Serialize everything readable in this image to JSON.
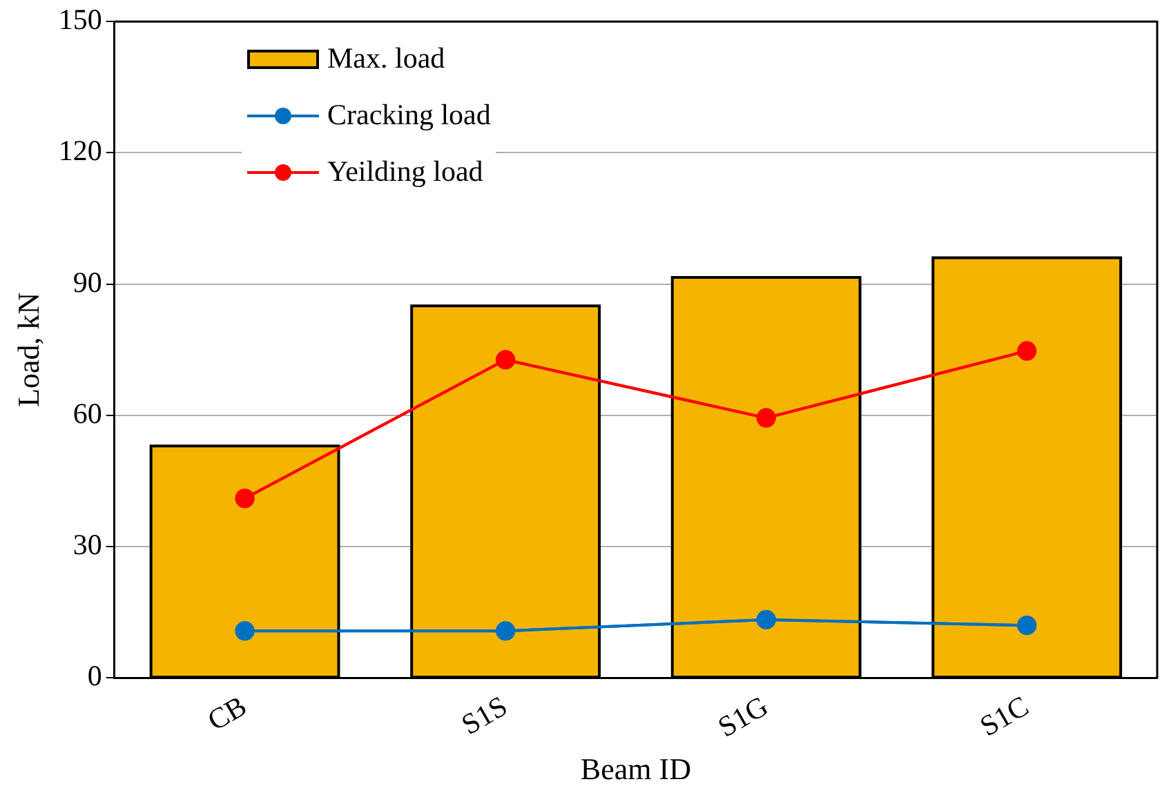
{
  "chart_data": {
    "type": "bar",
    "xlabel": "Beam ID",
    "ylabel": "Load, kN",
    "categories": [
      "CB",
      "S1S",
      "S1G",
      "S1C"
    ],
    "series": [
      {
        "name": "Max. load",
        "color": "#f5b400",
        "values": [
          53,
          85,
          91.5,
          96
        ]
      },
      {
        "name": "Cracking load",
        "type": "line",
        "color": "#0070c0",
        "values": [
          10.7,
          10.7,
          13.3,
          12
        ]
      },
      {
        "name": "Yeilding load",
        "type": "line",
        "color": "#ff0000",
        "values": [
          41,
          72.7,
          59.4,
          74.7
        ]
      }
    ],
    "ylim": [
      0,
      150
    ],
    "yticks": [
      0,
      30,
      60,
      90,
      120,
      150
    ],
    "grid": "y",
    "legend": "top left",
    "marker": "circle",
    "line_style": "solid"
  }
}
